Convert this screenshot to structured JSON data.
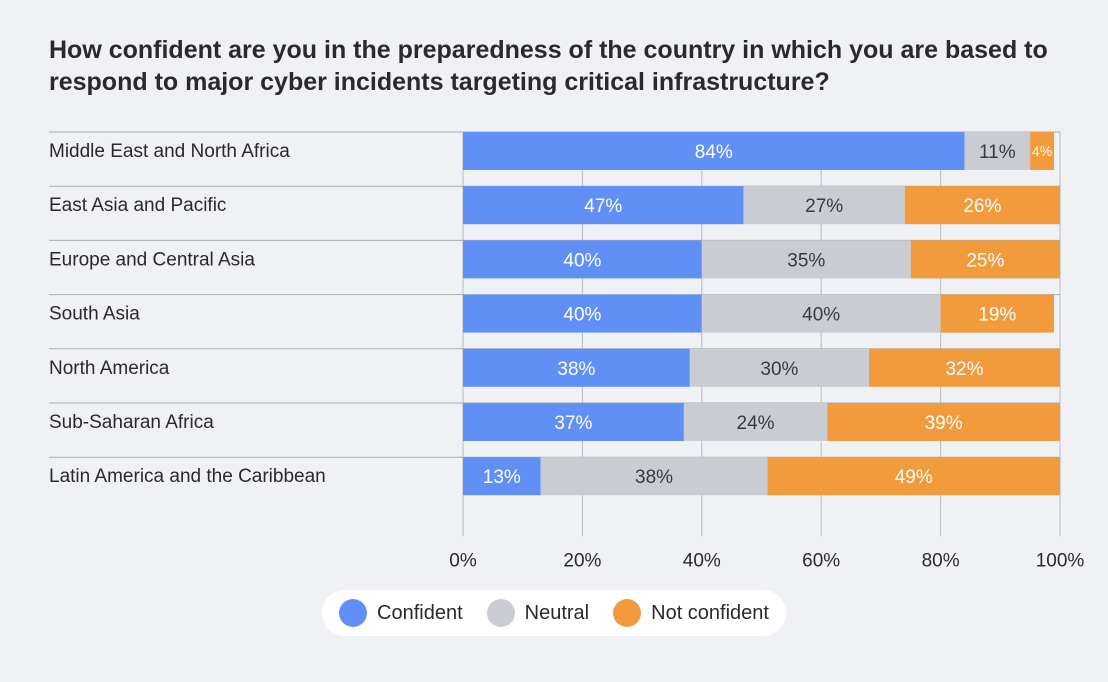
{
  "chart_data": {
    "type": "bar",
    "orientation": "horizontal",
    "stacked": true,
    "title": "How confident are you in the preparedness of the country in which you are based to respond to major cyber incidents targeting critical infrastructure?",
    "categories": [
      "Middle East and North Africa",
      "East Asia and Pacific",
      "Europe and Central Asia",
      "South Asia",
      "North America",
      "Sub-Saharan Africa",
      "Latin America and the Caribbean"
    ],
    "series": [
      {
        "name": "Confident",
        "color": "#6090f5",
        "values": [
          84,
          47,
          40,
          40,
          38,
          37,
          13
        ]
      },
      {
        "name": "Neutral",
        "color": "#c9cdd3",
        "values": [
          11,
          27,
          35,
          40,
          30,
          24,
          38
        ]
      },
      {
        "name": "Not confident",
        "color": "#f19b3c",
        "values": [
          4,
          26,
          25,
          19,
          32,
          39,
          49
        ]
      }
    ],
    "xlim": [
      0,
      100
    ],
    "xticks": [
      "0%",
      "20%",
      "40%",
      "60%",
      "80%",
      "100%"
    ],
    "legend_position": "bottom",
    "grid": "vertical"
  }
}
